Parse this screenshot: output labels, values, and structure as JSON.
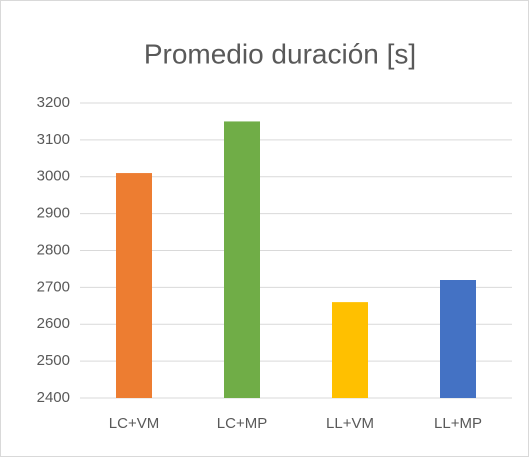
{
  "chart_data": {
    "type": "bar",
    "title": "Promedio duración [s]",
    "categories": [
      "LC+VM",
      "LC+MP",
      "LL+VM",
      "LL+MP"
    ],
    "values": [
      3010,
      3150,
      2660,
      2720
    ],
    "colors": [
      "#ed7d31",
      "#70ad47",
      "#ffc000",
      "#4472c4"
    ],
    "ylim": [
      2400,
      3200
    ],
    "yticks": [
      2400,
      2500,
      2600,
      2700,
      2800,
      2900,
      3000,
      3100,
      3200
    ],
    "grid": true
  }
}
